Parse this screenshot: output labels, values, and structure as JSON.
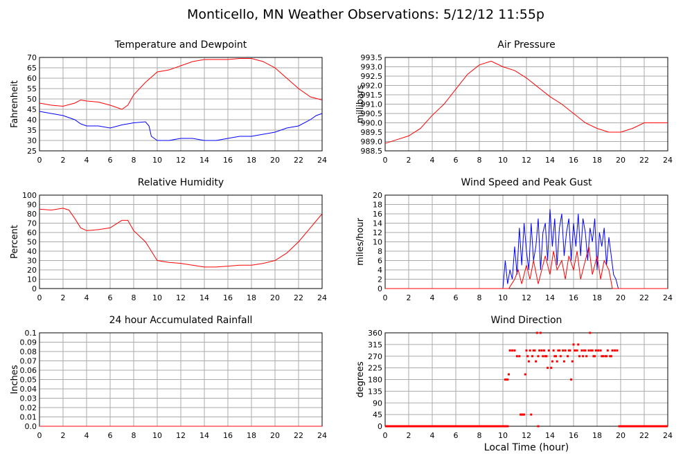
{
  "title": "Monticello, MN Weather Observations: 5/12/12 11:55p",
  "colors": {
    "series_a": "#ff0000",
    "series_b": "#0000ff",
    "grid": "#aaaaaa",
    "frame": "#000000"
  },
  "chart_data": [
    {
      "type": "line",
      "title": "Temperature and Dewpoint",
      "xlabel": "",
      "ylabel": "Fahrenheit",
      "xlim": [
        0,
        24
      ],
      "ylim": [
        25,
        70
      ],
      "xticks": [
        0,
        2,
        4,
        6,
        8,
        10,
        12,
        14,
        16,
        18,
        20,
        22,
        24
      ],
      "yticks": [
        "25",
        "30",
        "35",
        "40",
        "45",
        "50",
        "55",
        "60",
        "65",
        "70"
      ],
      "series": [
        {
          "color": "#ff0000",
          "x": [
            0,
            1,
            2,
            3,
            3.5,
            4,
            5,
            6,
            7,
            7.5,
            8,
            9,
            10,
            11,
            12,
            13,
            14,
            15,
            16,
            17,
            18,
            19,
            20,
            21,
            22,
            23,
            24
          ],
          "y": [
            48,
            47,
            46.5,
            48,
            49.5,
            49,
            48.5,
            47,
            45,
            47,
            52,
            58,
            63,
            64,
            66,
            68,
            69,
            69,
            69,
            69.5,
            69.5,
            68,
            65,
            60,
            55,
            51,
            49.5
          ]
        },
        {
          "color": "#0000ff",
          "x": [
            0,
            1,
            2,
            3,
            3.5,
            4,
            5,
            6,
            7,
            8,
            9,
            9.3,
            9.5,
            10,
            11,
            12,
            13,
            14,
            15,
            16,
            17,
            18,
            19,
            20,
            21,
            22,
            23,
            23.5,
            24
          ],
          "y": [
            44,
            43,
            42,
            40,
            38,
            37,
            37,
            36,
            37.5,
            38.5,
            39,
            37,
            32,
            30,
            30,
            31,
            31,
            30,
            30,
            31,
            32,
            32,
            33,
            34,
            36,
            37,
            40,
            42,
            43
          ]
        }
      ]
    },
    {
      "type": "line",
      "title": "Air Pressure",
      "xlabel": "",
      "ylabel": "millibars",
      "xlim": [
        0,
        24
      ],
      "ylim": [
        988.5,
        993.5
      ],
      "xticks": [
        0,
        2,
        4,
        6,
        8,
        10,
        12,
        14,
        16,
        18,
        20,
        22,
        24
      ],
      "yticks": [
        "988.5",
        "989.0",
        "989.5",
        "990.0",
        "990.5",
        "991.0",
        "991.5",
        "992.0",
        "992.5",
        "993.0",
        "993.5"
      ],
      "series": [
        {
          "color": "#ff0000",
          "x": [
            0,
            1,
            2,
            3,
            4,
            5,
            6,
            7,
            8,
            9,
            10,
            11,
            12,
            13,
            14,
            15,
            16,
            17,
            18,
            19,
            20,
            21,
            22,
            23,
            24
          ],
          "y": [
            988.9,
            989.1,
            989.3,
            989.7,
            990.4,
            991.0,
            991.8,
            992.6,
            993.1,
            993.3,
            993.0,
            992.8,
            992.4,
            991.9,
            991.4,
            991.0,
            990.5,
            990.0,
            989.7,
            989.5,
            989.5,
            989.7,
            990.0,
            990.0,
            990.0
          ]
        }
      ]
    },
    {
      "type": "line",
      "title": "Relative Humidity",
      "xlabel": "",
      "ylabel": "Percent",
      "xlim": [
        0,
        24
      ],
      "ylim": [
        0,
        100
      ],
      "xticks": [
        0,
        2,
        4,
        6,
        8,
        10,
        12,
        14,
        16,
        18,
        20,
        22,
        24
      ],
      "yticks": [
        "0",
        "10",
        "20",
        "30",
        "40",
        "50",
        "60",
        "70",
        "80",
        "90",
        "100"
      ],
      "series": [
        {
          "color": "#ff0000",
          "x": [
            0,
            1,
            2,
            2.5,
            3,
            3.5,
            4,
            5,
            6,
            7,
            7.5,
            8,
            9,
            9.5,
            10,
            11,
            12,
            13,
            14,
            15,
            16,
            17,
            18,
            19,
            20,
            21,
            22,
            23,
            24
          ],
          "y": [
            85,
            84,
            86,
            84,
            75,
            65,
            62,
            63,
            65,
            73,
            73,
            62,
            50,
            40,
            30,
            28,
            27,
            25,
            23,
            23,
            24,
            25,
            25,
            27,
            30,
            38,
            50,
            65,
            80
          ]
        }
      ]
    },
    {
      "type": "line",
      "title": "Wind Speed and Peak Gust",
      "xlabel": "",
      "ylabel": "miles/hour",
      "xlim": [
        0,
        24
      ],
      "ylim": [
        0,
        20
      ],
      "xticks": [
        0,
        2,
        4,
        6,
        8,
        10,
        12,
        14,
        16,
        18,
        20,
        22,
        24
      ],
      "yticks": [
        "0",
        "2",
        "4",
        "6",
        "8",
        "10",
        "12",
        "14",
        "16",
        "18",
        "20"
      ],
      "series": [
        {
          "color": "#0000ff",
          "x": [
            0,
            10,
            10.2,
            10.4,
            10.6,
            10.8,
            11,
            11.2,
            11.4,
            11.6,
            11.8,
            12,
            12.2,
            12.4,
            12.6,
            12.8,
            13,
            13.2,
            13.4,
            13.6,
            13.8,
            14,
            14.2,
            14.4,
            14.6,
            14.8,
            15,
            15.2,
            15.4,
            15.6,
            15.8,
            16,
            16.2,
            16.4,
            16.6,
            16.8,
            17,
            17.2,
            17.4,
            17.6,
            17.8,
            18,
            18.2,
            18.4,
            18.6,
            18.8,
            19,
            19.2,
            19.4,
            19.6,
            19.8,
            20,
            24
          ],
          "y": [
            0,
            0,
            6,
            1,
            4,
            2,
            9,
            3,
            13,
            5,
            14,
            8,
            4,
            14,
            6,
            9,
            15,
            4,
            12,
            14,
            6,
            17,
            9,
            15,
            5,
            13,
            16,
            7,
            12,
            15,
            6,
            14,
            9,
            16,
            7,
            15,
            12,
            6,
            13,
            10,
            15,
            4,
            12,
            9,
            13,
            5,
            11,
            7,
            3,
            2,
            0,
            0,
            0
          ]
        },
        {
          "color": "#ff0000",
          "x": [
            0,
            10.5,
            11,
            11.3,
            11.6,
            12,
            12.3,
            12.6,
            13,
            13.3,
            13.6,
            14,
            14.3,
            14.6,
            15,
            15.3,
            15.6,
            16,
            16.3,
            16.6,
            17,
            17.3,
            17.6,
            18,
            18.3,
            18.6,
            19,
            19.3,
            24
          ],
          "y": [
            0,
            0,
            2,
            4,
            1,
            5,
            2,
            6,
            1,
            4,
            7,
            3,
            8,
            4,
            6,
            2,
            7,
            4,
            8,
            2,
            6,
            9,
            3,
            7,
            2,
            6,
            4,
            0,
            0
          ]
        }
      ]
    },
    {
      "type": "line",
      "title": "24 hour Accumulated Rainfall",
      "xlabel": "",
      "ylabel": "Inches",
      "xlim": [
        0,
        24
      ],
      "ylim": [
        0,
        0.1
      ],
      "xticks": [
        0,
        2,
        4,
        6,
        8,
        10,
        12,
        14,
        16,
        18,
        20,
        22,
        24
      ],
      "yticks": [
        "0.0",
        "0.01",
        "0.02",
        "0.03",
        "0.04",
        "0.05",
        "0.06",
        "0.07",
        "0.08",
        "0.09",
        "0.1"
      ],
      "series": [
        {
          "color": "#ff0000",
          "x": [
            0,
            24
          ],
          "y": [
            0,
            0
          ]
        }
      ]
    },
    {
      "type": "scatter",
      "title": "Wind Direction",
      "xlabel": "Local Time (hour)",
      "ylabel": "degrees",
      "xlim": [
        0,
        24
      ],
      "ylim": [
        0,
        360
      ],
      "xticks": [
        0,
        2,
        4,
        6,
        8,
        10,
        12,
        14,
        16,
        18,
        20,
        22,
        24
      ],
      "yticks": [
        "0",
        "45",
        "90",
        "135",
        "180",
        "225",
        "270",
        "315",
        "360"
      ],
      "series": [
        {
          "color": "#ff0000",
          "x": [
            10.2,
            10.5,
            10.6,
            10.8,
            11,
            11.2,
            11.4,
            11.6,
            11.8,
            12,
            12.1,
            12.3,
            12.5,
            12.7,
            12.8,
            13,
            13.1,
            13.3,
            13.5,
            13.7,
            13.9,
            14.1,
            14.3,
            14.5,
            14.7,
            14.9,
            15.1,
            15.3,
            15.5,
            15.7,
            15.9,
            16.1,
            16.3,
            16.5,
            16.7,
            16.9,
            17.1,
            17.3,
            17.5,
            17.7,
            17.9,
            18.1,
            18.3,
            18.5,
            18.7,
            18.9,
            19.1,
            19.3,
            19.5,
            19.7,
            10.3,
            10.4,
            11.5,
            11.7,
            12.6,
            13.6,
            14.4,
            15.6,
            16.2,
            16.8,
            17.0,
            18.4,
            18.8,
            19.2,
            12.9,
            13.2,
            13.8,
            14.2,
            15.2,
            16.4,
            17.6,
            11.9,
            12.2,
            13.4,
            14.6,
            15.8,
            17.4,
            12.4,
            13.0,
            14.8,
            16.0,
            17.8
          ],
          "y": [
            180,
            200,
            292,
            292,
            292,
            270,
            270,
            45,
            45,
            292,
            270,
            292,
            270,
            292,
            250,
            270,
            292,
            292,
            292,
            270,
            292,
            225,
            292,
            270,
            292,
            270,
            292,
            292,
            270,
            292,
            250,
            292,
            292,
            270,
            292,
            292,
            270,
            292,
            292,
            270,
            292,
            292,
            292,
            270,
            270,
            292,
            270,
            292,
            292,
            292,
            180,
            180,
            45,
            45,
            292,
            270,
            270,
            292,
            292,
            270,
            292,
            270,
            270,
            270,
            360,
            360,
            225,
            250,
            250,
            315,
            292,
            200,
            250,
            270,
            250,
            180,
            360,
            45,
            0,
            292,
            315,
            270
          ]
        },
        {
          "color": "#ff0000",
          "x": [
            0,
            10.5
          ],
          "y": [
            0,
            0
          ],
          "style": "band"
        },
        {
          "color": "#ff0000",
          "x": [
            19.8,
            24
          ],
          "y": [
            0,
            0
          ],
          "style": "band"
        }
      ]
    }
  ]
}
